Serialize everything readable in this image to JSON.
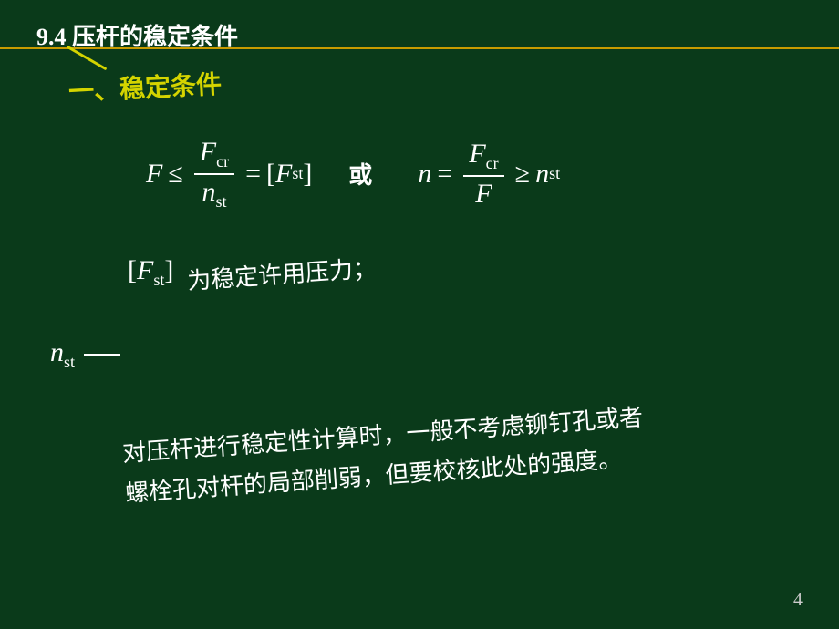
{
  "colors": {
    "background": "#0a3a1a",
    "title_text": "#ffffff",
    "underline": "#c89b00",
    "subtitle": "#d4d400",
    "body_text": "#ffffff",
    "page_num": "#cccccc"
  },
  "typography": {
    "title_fontsize": 26,
    "subtitle_fontsize": 28,
    "formula_fontsize": 30,
    "body_fontsize": 26,
    "page_fontsize": 20
  },
  "section": {
    "number": "9.4",
    "title": "压杆的稳定条件"
  },
  "subtitle": {
    "label": "一、稳定条件"
  },
  "formulas": {
    "f1_lhs": "F",
    "f1_op1": "≤",
    "f1_frac_num": "F",
    "f1_frac_num_sub": "cr",
    "f1_frac_den": "n",
    "f1_frac_den_sub": "st",
    "f1_op2": "=",
    "f1_rhs_bracket_l": "[",
    "f1_rhs_var": "F",
    "f1_rhs_sub": "st",
    "f1_rhs_bracket_r": "]",
    "or_label": "或",
    "f2_lhs": "n",
    "f2_op1": "=",
    "f2_frac_num": "F",
    "f2_frac_num_sub": "cr",
    "f2_frac_den": "F",
    "f2_op2": "≥",
    "f2_rhs": "n",
    "f2_rhs_sub": "st"
  },
  "definitions": {
    "fst_bracket_l": "[",
    "fst_var": "F",
    "fst_sub": "st",
    "fst_bracket_r": "]",
    "fst_desc": "为稳定许用压力；",
    "nst_var": "n",
    "nst_sub": "st"
  },
  "note": {
    "line1": "对压杆进行稳定性计算时，一般不考虑铆钉孔或者",
    "line2": "螺栓孔对杆的局部削弱，但要校核此处的强度。"
  },
  "page_number": "4"
}
